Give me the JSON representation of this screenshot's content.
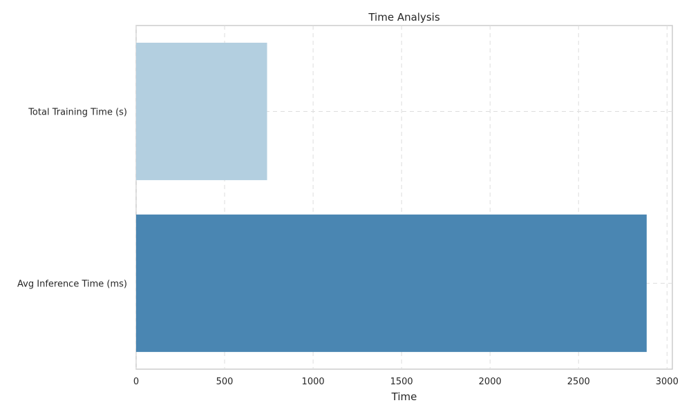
{
  "chart_data": {
    "type": "bar",
    "orientation": "horizontal",
    "title": "Time Analysis",
    "xlabel": "Time",
    "ylabel": "",
    "categories": [
      "Total Training Time (s)",
      "Avg Inference Time (ms)"
    ],
    "values": [
      740,
      2885
    ],
    "colors": [
      "#b3cfe0",
      "#4a86b2"
    ],
    "xlim": [
      0,
      3030
    ],
    "xticks": [
      0,
      500,
      1000,
      1500,
      2000,
      2500,
      3000
    ],
    "xtick_labels": [
      "0",
      "500",
      "1000",
      "1500",
      "2000",
      "2500",
      "3000"
    ],
    "grid": true,
    "legend": "none"
  }
}
